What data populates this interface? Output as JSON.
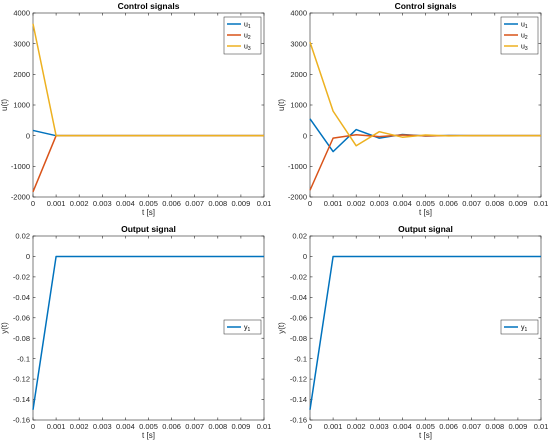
{
  "colors": {
    "u1": "#0072BD",
    "u2": "#D95319",
    "u3": "#EDB120",
    "y1": "#0072BD"
  },
  "chart_data": [
    {
      "type": "line",
      "title": "Control signals",
      "xlabel": "t [s]",
      "ylabel": "u(t)",
      "xlim": [
        0,
        0.01
      ],
      "ylim": [
        -2000,
        4000
      ],
      "xticks": [
        0,
        0.001,
        0.002,
        0.003,
        0.004,
        0.005,
        0.006,
        0.007,
        0.008,
        0.009,
        0.01
      ],
      "yticks": [
        -2000,
        -1000,
        0,
        1000,
        2000,
        3000,
        4000
      ],
      "legend_position": "top-right",
      "series": [
        {
          "name": "u1",
          "label_base": "u",
          "label_sub": "1",
          "color_key": "u1",
          "x": [
            0,
            0.001,
            0.002,
            0.003,
            0.004,
            0.005,
            0.006,
            0.007,
            0.008,
            0.009,
            0.01
          ],
          "y": [
            170,
            0,
            0,
            0,
            0,
            0,
            0,
            0,
            0,
            0,
            0
          ]
        },
        {
          "name": "u2",
          "label_base": "u",
          "label_sub": "2",
          "color_key": "u2",
          "x": [
            0,
            0.001,
            0.002,
            0.003,
            0.004,
            0.005,
            0.006,
            0.007,
            0.008,
            0.009,
            0.01
          ],
          "y": [
            -1830,
            0,
            0,
            0,
            0,
            0,
            0,
            0,
            0,
            0,
            0
          ]
        },
        {
          "name": "u3",
          "label_base": "u",
          "label_sub": "3",
          "color_key": "u3",
          "x": [
            0,
            0.001,
            0.002,
            0.003,
            0.004,
            0.005,
            0.006,
            0.007,
            0.008,
            0.009,
            0.01
          ],
          "y": [
            3650,
            0,
            0,
            0,
            0,
            0,
            0,
            0,
            0,
            0,
            0
          ]
        }
      ]
    },
    {
      "type": "line",
      "title": "Control signals",
      "xlabel": "t [s]",
      "ylabel": "u(t)",
      "xlim": [
        0,
        0.01
      ],
      "ylim": [
        -2000,
        4000
      ],
      "xticks": [
        0,
        0.001,
        0.002,
        0.003,
        0.004,
        0.005,
        0.006,
        0.007,
        0.008,
        0.009,
        0.01
      ],
      "yticks": [
        -2000,
        -1000,
        0,
        1000,
        2000,
        3000,
        4000
      ],
      "legend_position": "top-right",
      "series": [
        {
          "name": "u1",
          "label_base": "u",
          "label_sub": "1",
          "color_key": "u1",
          "x": [
            0,
            0.001,
            0.002,
            0.003,
            0.004,
            0.005,
            0.006,
            0.007,
            0.008,
            0.009,
            0.01
          ],
          "y": [
            550,
            -520,
            200,
            -80,
            40,
            -10,
            5,
            0,
            0,
            0,
            0
          ]
        },
        {
          "name": "u2",
          "label_base": "u",
          "label_sub": "2",
          "color_key": "u2",
          "x": [
            0,
            0.001,
            0.002,
            0.003,
            0.004,
            0.005,
            0.006,
            0.007,
            0.008,
            0.009,
            0.01
          ],
          "y": [
            -1780,
            -80,
            30,
            -30,
            20,
            -5,
            0,
            0,
            0,
            0,
            0
          ]
        },
        {
          "name": "u3",
          "label_base": "u",
          "label_sub": "3",
          "color_key": "u3",
          "x": [
            0,
            0.001,
            0.002,
            0.003,
            0.004,
            0.005,
            0.006,
            0.007,
            0.008,
            0.009,
            0.01
          ],
          "y": [
            3050,
            800,
            -330,
            130,
            -50,
            20,
            -5,
            0,
            0,
            0,
            0
          ]
        }
      ]
    },
    {
      "type": "line",
      "title": "Output signal",
      "xlabel": "t [s]",
      "ylabel": "y(t)",
      "xlim": [
        0,
        0.01
      ],
      "ylim": [
        -0.16,
        0.02
      ],
      "xticks": [
        0,
        0.001,
        0.002,
        0.003,
        0.004,
        0.005,
        0.006,
        0.007,
        0.008,
        0.009,
        0.01
      ],
      "yticks": [
        -0.16,
        -0.14,
        -0.12,
        -0.1,
        -0.08,
        -0.06,
        -0.04,
        -0.02,
        0,
        0.02
      ],
      "legend_position": "right",
      "series": [
        {
          "name": "y1",
          "label_base": "y",
          "label_sub": "1",
          "color_key": "y1",
          "x": [
            0,
            0.001,
            0.01
          ],
          "y": [
            -0.15,
            0,
            0
          ]
        }
      ]
    },
    {
      "type": "line",
      "title": "Output signal",
      "xlabel": "t [s]",
      "ylabel": "y(t)",
      "xlim": [
        0,
        0.01
      ],
      "ylim": [
        -0.16,
        0.02
      ],
      "xticks": [
        0,
        0.001,
        0.002,
        0.003,
        0.004,
        0.005,
        0.006,
        0.007,
        0.008,
        0.009,
        0.01
      ],
      "yticks": [
        -0.16,
        -0.14,
        -0.12,
        -0.1,
        -0.08,
        -0.06,
        -0.04,
        -0.02,
        0,
        0.02
      ],
      "legend_position": "right",
      "series": [
        {
          "name": "y1",
          "label_base": "y",
          "label_sub": "1",
          "color_key": "y1",
          "x": [
            0,
            0.001,
            0.01
          ],
          "y": [
            -0.15,
            0,
            0
          ]
        }
      ]
    }
  ]
}
